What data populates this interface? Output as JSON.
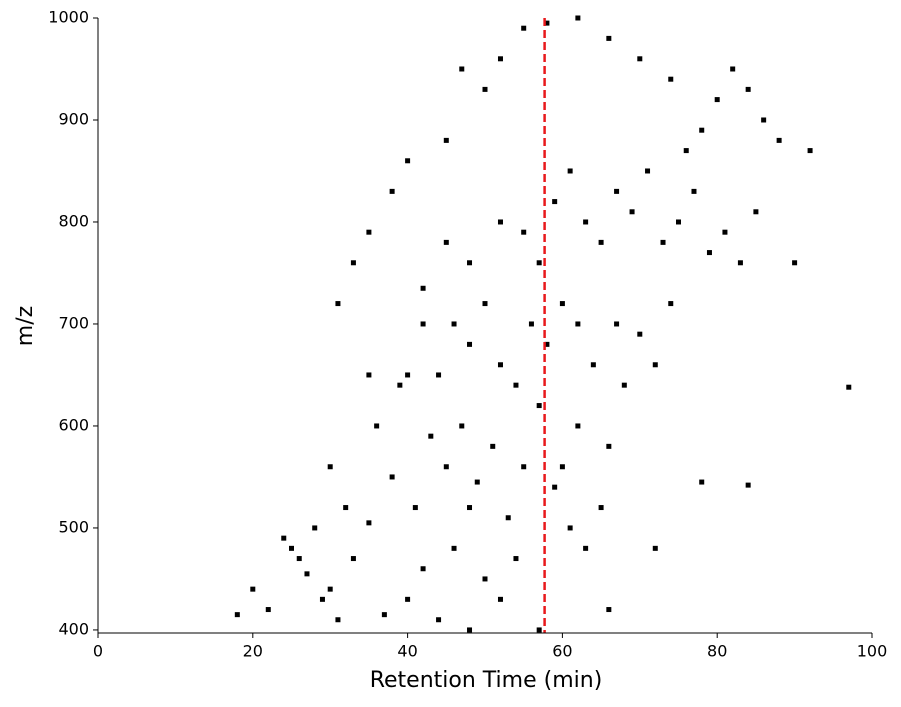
{
  "chart_data": {
    "type": "scatter",
    "x_label": "Retention Time (min)",
    "y_label": "m/z",
    "xlim": [
      0,
      100
    ],
    "ylim": [
      397,
      1000
    ],
    "xticks": [
      0,
      20,
      40,
      60,
      80,
      100
    ],
    "yticks": [
      400,
      500,
      600,
      700,
      800,
      900,
      1000
    ],
    "series": [
      {
        "color": "#000000",
        "x": [
          25,
          27,
          29,
          31,
          22,
          33,
          35,
          28,
          30,
          37,
          40,
          42,
          44,
          46,
          48,
          50,
          52,
          54,
          38,
          41,
          45,
          47,
          49,
          51,
          53,
          55,
          57,
          36,
          39,
          43,
          44,
          46,
          48,
          50,
          52,
          54,
          56,
          58,
          60,
          62,
          59,
          61,
          63,
          65,
          66,
          68,
          64,
          62,
          60,
          67,
          70,
          72,
          74,
          42,
          45,
          48,
          52,
          55,
          57,
          59,
          61,
          63,
          65,
          67,
          69,
          71,
          73,
          75,
          77,
          79,
          81,
          83,
          85,
          76,
          78,
          80,
          82,
          84,
          86,
          88,
          52,
          55,
          58,
          62,
          66,
          70,
          74,
          47,
          50,
          45,
          40,
          38,
          35,
          33,
          31,
          42,
          40,
          35,
          30,
          32,
          26,
          24,
          20,
          18,
          92,
          97,
          57,
          48,
          72,
          78,
          84,
          90,
          66
        ],
        "values": [
          480,
          455,
          430,
          410,
          420,
          470,
          505,
          500,
          440,
          415,
          430,
          460,
          410,
          480,
          520,
          450,
          430,
          470,
          550,
          520,
          560,
          600,
          545,
          580,
          510,
          560,
          620,
          600,
          640,
          590,
          650,
          700,
          680,
          720,
          660,
          640,
          700,
          680,
          560,
          600,
          540,
          500,
          480,
          520,
          580,
          640,
          660,
          700,
          720,
          700,
          690,
          660,
          720,
          735,
          780,
          760,
          800,
          790,
          760,
          820,
          850,
          800,
          780,
          830,
          810,
          850,
          780,
          800,
          830,
          770,
          790,
          760,
          810,
          870,
          890,
          920,
          950,
          930,
          900,
          880,
          960,
          990,
          995,
          1000,
          980,
          960,
          940,
          950,
          930,
          880,
          860,
          830,
          790,
          760,
          720,
          700,
          650,
          650,
          560,
          520,
          470,
          490,
          440,
          415,
          870,
          638,
          400,
          400,
          480,
          545,
          542,
          760,
          420
        ]
      }
    ],
    "vline": {
      "x": 57.7,
      "color": "#e8191c"
    }
  }
}
